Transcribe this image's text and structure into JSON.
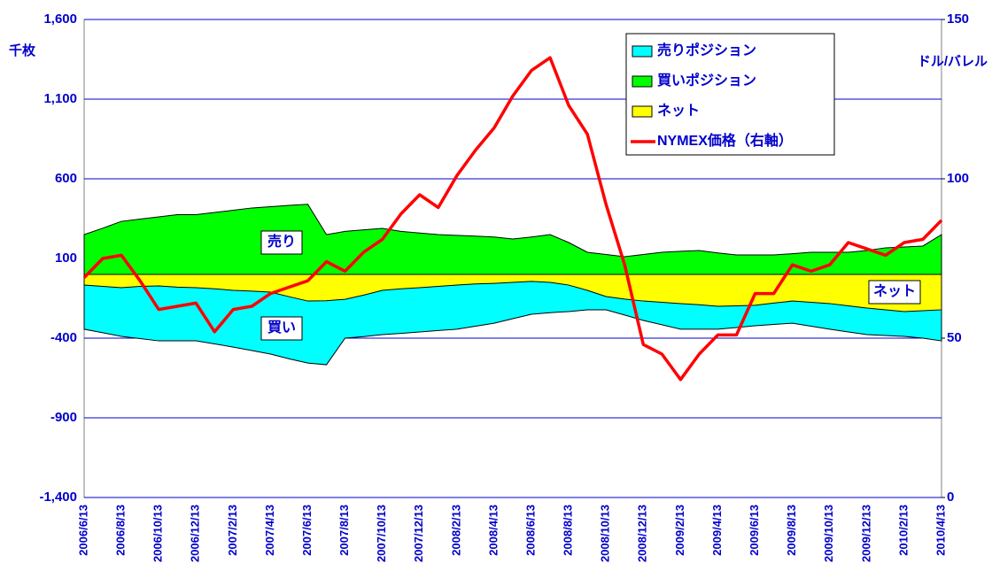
{
  "chart_data": {
    "type": "line",
    "y_label": "千枚",
    "y2_label": "ドル/バレル",
    "annotations": [
      "売り",
      "買い",
      "ネット"
    ],
    "categories": [
      "2006/6/13",
      null,
      "2006/8/13",
      null,
      "2006/10/13",
      null,
      "2006/12/13",
      null,
      "2007/2/13",
      null,
      "2007/4/13",
      null,
      "2007/6/13",
      null,
      "2007/8/13",
      null,
      "2007/10/13",
      null,
      "2007/12/13",
      null,
      "2008/2/13",
      null,
      "2008/4/13",
      null,
      "2008/6/13",
      null,
      "2008/8/13",
      null,
      "2008/10/13",
      null,
      "2008/12/13",
      null,
      "2009/2/13",
      null,
      "2009/4/13",
      null,
      "2009/6/13",
      null,
      "2009/8/13",
      null,
      "2009/10/13",
      null,
      "2009/12/13",
      null,
      "2010/2/13",
      null,
      "2010/4/13"
    ],
    "series": [
      {
        "name": "売りポジション",
        "kind": "area",
        "color": "#00ffff",
        "values": [
          -344,
          -366,
          -389,
          -403,
          -417,
          -417,
          -417,
          -436,
          -456,
          -478,
          -500,
          -530,
          -556,
          -567,
          -400,
          -390,
          -378,
          -370,
          -361,
          -352,
          -344,
          -325,
          -306,
          -278,
          -250,
          -240,
          -233,
          -222,
          -222,
          -255,
          -289,
          -316,
          -344,
          -344,
          -344,
          -333,
          -322,
          -314,
          -306,
          -325,
          -344,
          -361,
          -378,
          -383,
          -389,
          -400,
          -417
        ]
      },
      {
        "name": "買いポジション",
        "kind": "area",
        "color": "#00ff00",
        "values": [
          250,
          290,
          333,
          347,
          361,
          375,
          375,
          389,
          403,
          417,
          425,
          433,
          440,
          250,
          270,
          280,
          289,
          270,
          260,
          250,
          245,
          240,
          235,
          222,
          235,
          250,
          200,
          139,
          125,
          111,
          125,
          139,
          145,
          150,
          135,
          122,
          122,
          122,
          130,
          139,
          139,
          139,
          150,
          167,
          172,
          178,
          250
        ]
      },
      {
        "name": "ネット",
        "kind": "area",
        "color": "#ffff00",
        "values": [
          -67,
          -75,
          -83,
          -75,
          -72,
          -80,
          -83,
          -90,
          -100,
          -105,
          -111,
          -140,
          -167,
          -165,
          -156,
          -130,
          -100,
          -90,
          -83,
          -75,
          -67,
          -60,
          -56,
          -50,
          -44,
          -50,
          -67,
          -100,
          -139,
          -155,
          -167,
          -175,
          -183,
          -190,
          -200,
          -197,
          -194,
          -180,
          -167,
          -175,
          -183,
          -197,
          -211,
          -222,
          -233,
          -228,
          -222
        ]
      },
      {
        "name": "NYMEX価格（右軸）",
        "kind": "line",
        "axis": "y2",
        "color": "#ff0000",
        "values": [
          69,
          75,
          76,
          68,
          59,
          60,
          61,
          52,
          59,
          60,
          64,
          66,
          68,
          74,
          71,
          77,
          81,
          89,
          95,
          91,
          101,
          109,
          116,
          126,
          134,
          138,
          123,
          114,
          92,
          73,
          48,
          45,
          37,
          45,
          51,
          51,
          64,
          64,
          73,
          71,
          73,
          80,
          78,
          76,
          80,
          81,
          87
        ]
      }
    ],
    "ylim": [
      -1400,
      1600
    ],
    "yticks": [
      {
        "value": -1400,
        "label": "-1,400"
      },
      -900,
      -400,
      100,
      600,
      {
        "value": 1100,
        "label": "1,100"
      },
      {
        "value": 1600,
        "label": "1,600"
      }
    ],
    "y2lim": [
      0,
      150
    ],
    "y2ticks": [
      0,
      50,
      100,
      150
    ],
    "grid": true,
    "legend": "top-right"
  }
}
